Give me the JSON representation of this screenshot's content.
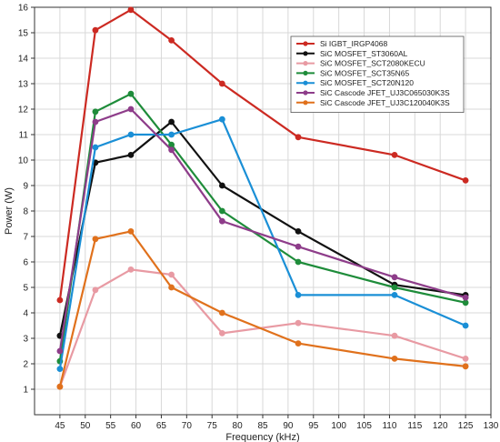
{
  "chart_data": {
    "type": "line",
    "xlabel": "Frequency (kHz)",
    "ylabel": "Power (W)",
    "xlim": [
      40,
      130
    ],
    "ylim": [
      0,
      16
    ],
    "x_ticks": [
      45,
      50,
      55,
      60,
      65,
      70,
      75,
      80,
      85,
      90,
      95,
      100,
      105,
      110,
      115,
      120,
      125,
      130
    ],
    "y_ticks": [
      1,
      2,
      3,
      4,
      5,
      6,
      7,
      8,
      9,
      10,
      11,
      12,
      13,
      14,
      15,
      16
    ],
    "grid": true,
    "legend_position": "top-right",
    "series": [
      {
        "name": "Si IGBT_IRGP4068",
        "color": "#cc2a22",
        "x": [
          45,
          52,
          59,
          67,
          77,
          92,
          111,
          125
        ],
        "y": [
          4.5,
          15.1,
          15.9,
          14.7,
          13.0,
          10.9,
          10.2,
          9.2
        ]
      },
      {
        "name": "SiC MOSFET_ST3060AL",
        "color": "#111111",
        "x": [
          45,
          52,
          59,
          67,
          77,
          92,
          111,
          125
        ],
        "y": [
          3.1,
          9.9,
          10.2,
          11.5,
          9.0,
          7.2,
          5.1,
          4.7
        ]
      },
      {
        "name": "SiC MOSFET_SCT2080KECU",
        "color": "#e89aa3",
        "x": [
          45,
          52,
          59,
          67,
          77,
          92,
          111,
          125
        ],
        "y": [
          1.1,
          4.9,
          5.7,
          5.5,
          3.2,
          3.6,
          3.1,
          2.2
        ]
      },
      {
        "name": "SiC MOSFET_SCT35N65",
        "color": "#1e8c3a",
        "x": [
          45,
          52,
          59,
          67,
          77,
          92,
          111,
          125
        ],
        "y": [
          2.1,
          11.9,
          12.6,
          10.6,
          8.0,
          6.0,
          5.0,
          4.4
        ]
      },
      {
        "name": "SiC MOSFET_SCT20N120",
        "color": "#1a8fd6",
        "x": [
          45,
          52,
          59,
          67,
          77,
          92,
          111,
          125
        ],
        "y": [
          1.8,
          10.5,
          11.0,
          11.0,
          11.6,
          4.7,
          4.7,
          3.5
        ]
      },
      {
        "name": "SiC Cascode JFET_UJ3C065030K3S",
        "color": "#8e3d8a",
        "x": [
          45,
          52,
          59,
          67,
          77,
          92,
          111,
          125
        ],
        "y": [
          2.5,
          11.5,
          12.0,
          10.4,
          7.6,
          6.6,
          5.4,
          4.6
        ]
      },
      {
        "name": "SiC Cascode JFET_UJ3C120040K3S",
        "color": "#e0711c",
        "x": [
          45,
          52,
          59,
          67,
          77,
          92,
          111,
          125
        ],
        "y": [
          1.1,
          6.9,
          7.2,
          5.0,
          4.0,
          2.8,
          2.2,
          1.9
        ]
      }
    ]
  }
}
